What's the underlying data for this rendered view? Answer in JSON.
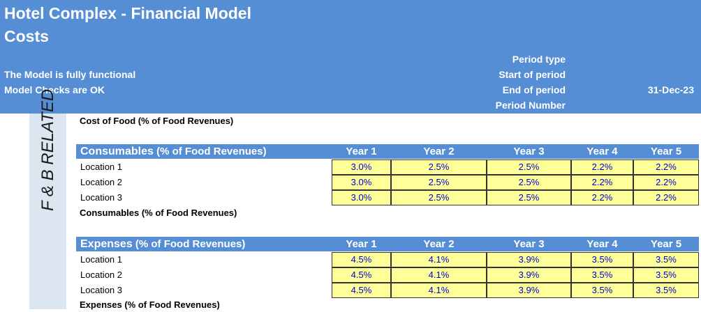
{
  "header": {
    "title": "Hotel Complex - Financial Model",
    "subtitle": "Costs",
    "status_functional": "The Model is fully functional",
    "status_checks": "Model Checks are OK",
    "period_type_label": "Period type",
    "start_period_label": "Start of period",
    "end_period_label": "End of period",
    "end_period_value": "31-Dec-23",
    "period_number_label": "Period Number"
  },
  "sidebar": {
    "section_label": "F & B RELATED"
  },
  "notes": {
    "cost_of_food": "Cost of Food (% of Food Revenues)",
    "consumables_footer": "Consumables (% of Food Revenues)",
    "expenses_footer": "Expenses (% of Food Revenues)"
  },
  "years": [
    "Year 1",
    "Year 2",
    "Year 3",
    "Year 4",
    "Year 5"
  ],
  "consumables": {
    "title_main": "Consumables",
    "title_rest": " (% of Food Revenues)",
    "rows": [
      {
        "label": "Location 1",
        "values": [
          "3.0%",
          "2.5%",
          "2.5%",
          "2.2%",
          "2.2%"
        ]
      },
      {
        "label": "Location 2",
        "values": [
          "3.0%",
          "2.5%",
          "2.5%",
          "2.2%",
          "2.2%"
        ]
      },
      {
        "label": "Location 3",
        "values": [
          "3.0%",
          "2.5%",
          "2.5%",
          "2.2%",
          "2.2%"
        ]
      }
    ]
  },
  "expenses": {
    "title_main": "Expenses",
    "title_rest": " (% of Food Revenues)",
    "rows": [
      {
        "label": "Location 1",
        "values": [
          "4.5%",
          "4.1%",
          "3.9%",
          "3.5%",
          "3.5%"
        ]
      },
      {
        "label": "Location 2",
        "values": [
          "4.5%",
          "4.1%",
          "3.9%",
          "3.5%",
          "3.5%"
        ]
      },
      {
        "label": "Location 3",
        "values": [
          "4.5%",
          "4.1%",
          "3.9%",
          "3.5%",
          "3.5%"
        ]
      }
    ]
  },
  "colors": {
    "header_blue": "#558ED5",
    "input_yellow": "#FFFF99",
    "input_text": "#0000CC",
    "sidebar_bg": "#DCE6F1"
  }
}
